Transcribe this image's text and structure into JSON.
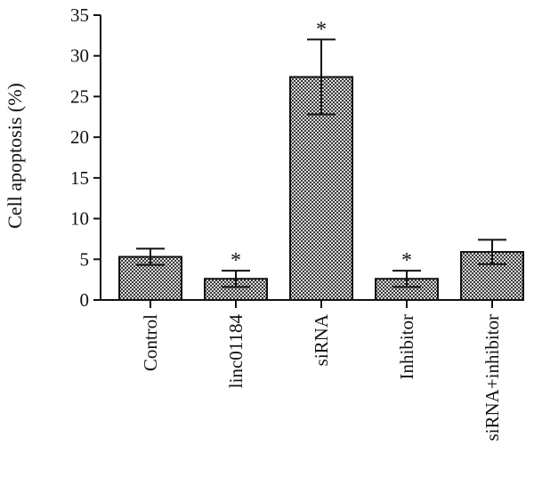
{
  "chart_data": {
    "type": "bar",
    "ylabel": "Cell apoptosis (%)",
    "xlabel": "",
    "ylim": [
      0,
      35
    ],
    "yticks": [
      0,
      5,
      10,
      15,
      20,
      25,
      30,
      35
    ],
    "grid": false,
    "legend": "none",
    "categories": [
      "Control",
      "linc01184",
      "siRNA",
      "Inhibitor",
      "siRNA+inhibitor"
    ],
    "values": [
      5.3,
      2.6,
      27.4,
      2.6,
      5.9
    ],
    "errors": [
      1.0,
      1.0,
      4.6,
      1.0,
      1.5
    ],
    "significance": [
      "",
      "*",
      "*",
      "*",
      ""
    ],
    "bar_pattern": "dark crosshatch",
    "colors": {
      "bar_fill": "#555555",
      "bar_stroke": "#111111",
      "axis": "#111111"
    }
  }
}
